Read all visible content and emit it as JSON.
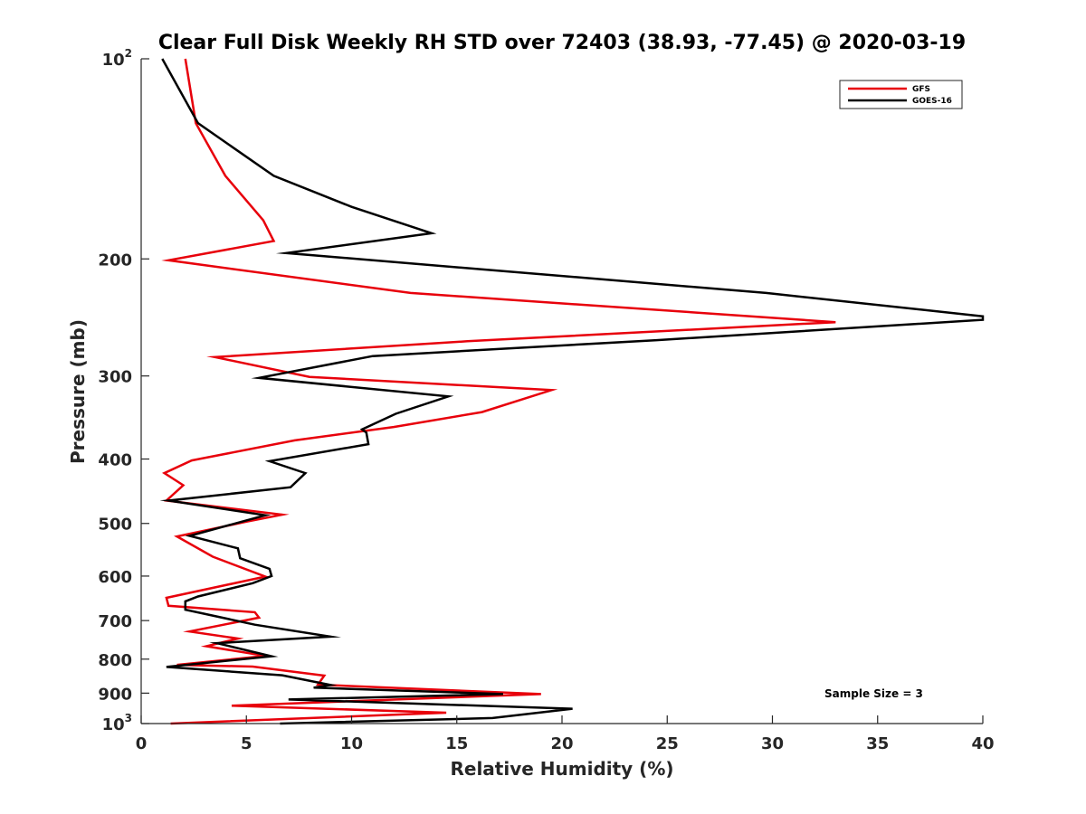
{
  "chart_data": {
    "type": "line",
    "title": "Clear Full Disk Weekly RH STD over 72403 (38.93, -77.45) @ 2020-03-19",
    "xlabel": "Relative Humidity (%)",
    "ylabel": "Pressure (mb)",
    "xlim": [
      0,
      40
    ],
    "ylim": [
      100,
      1000
    ],
    "yscale": "log",
    "y_reversed": true,
    "grid": false,
    "legend_position": "top-right",
    "x_ticks": [
      "0",
      "5",
      "10",
      "15",
      "20",
      "25",
      "30",
      "35",
      "40"
    ],
    "x_tick_values": [
      0,
      5,
      10,
      15,
      20,
      25,
      30,
      35,
      40
    ],
    "y_ticks": [
      {
        "value": 100,
        "base": "10",
        "exp": "2",
        "label": ""
      },
      {
        "value": 200,
        "label": "200"
      },
      {
        "value": 300,
        "label": "300"
      },
      {
        "value": 400,
        "label": "400"
      },
      {
        "value": 500,
        "label": "500"
      },
      {
        "value": 600,
        "label": "600"
      },
      {
        "value": 700,
        "label": "700"
      },
      {
        "value": 800,
        "label": "800"
      },
      {
        "value": 900,
        "label": "900"
      },
      {
        "value": 1000,
        "base": "10",
        "exp": "3",
        "label": ""
      }
    ],
    "annotation": "Sample Size = 3",
    "series": [
      {
        "name": "GFS",
        "color": "#e8000b",
        "points": [
          [
            2.1,
            100
          ],
          [
            2.6,
            125
          ],
          [
            4.0,
            150
          ],
          [
            5.8,
            175
          ],
          [
            6.3,
            188
          ],
          [
            1.3,
            201
          ],
          [
            12.8,
            225
          ],
          [
            33.0,
            249
          ],
          [
            15.5,
            266
          ],
          [
            3.5,
            281
          ],
          [
            8.0,
            301
          ],
          [
            19.5,
            315
          ],
          [
            16.2,
            340
          ],
          [
            12.0,
            358
          ],
          [
            7.3,
            375
          ],
          [
            2.4,
            402
          ],
          [
            1.1,
            420
          ],
          [
            2.0,
            438
          ],
          [
            1.2,
            462
          ],
          [
            6.7,
            485
          ],
          [
            5.0,
            497
          ],
          [
            1.7,
            523
          ],
          [
            3.4,
            561
          ],
          [
            5.9,
            601
          ],
          [
            1.2,
            647
          ],
          [
            1.3,
            665
          ],
          [
            5.4,
            680
          ],
          [
            5.6,
            693
          ],
          [
            2.3,
            727
          ],
          [
            4.6,
            745
          ],
          [
            3.1,
            765
          ],
          [
            5.9,
            791
          ],
          [
            1.7,
            816
          ],
          [
            5.3,
            821
          ],
          [
            8.7,
            847
          ],
          [
            8.4,
            874
          ],
          [
            19.0,
            903
          ],
          [
            4.3,
            940
          ],
          [
            14.5,
            963
          ],
          [
            1.4,
            1000
          ]
        ]
      },
      {
        "name": "GOES-16",
        "color": "#000000",
        "points": [
          [
            1.0,
            100
          ],
          [
            2.7,
            125
          ],
          [
            6.3,
            150
          ],
          [
            10.0,
            167
          ],
          [
            13.8,
            183
          ],
          [
            6.9,
            196
          ],
          [
            29.7,
            225
          ],
          [
            40.0,
            244
          ],
          [
            40.0,
            247
          ],
          [
            24.5,
            265
          ],
          [
            11.0,
            280
          ],
          [
            5.6,
            302
          ],
          [
            14.6,
            322
          ],
          [
            12.1,
            342
          ],
          [
            10.5,
            361
          ],
          [
            10.7,
            365
          ],
          [
            10.8,
            380
          ],
          [
            6.1,
            403
          ],
          [
            7.8,
            420
          ],
          [
            7.1,
            441
          ],
          [
            1.3,
            462
          ],
          [
            5.9,
            486
          ],
          [
            2.3,
            522
          ],
          [
            4.6,
            545
          ],
          [
            4.7,
            564
          ],
          [
            6.1,
            585
          ],
          [
            6.2,
            600
          ],
          [
            5.3,
            615
          ],
          [
            2.7,
            644
          ],
          [
            2.1,
            655
          ],
          [
            2.1,
            674
          ],
          [
            5.4,
            710
          ],
          [
            9.0,
            740
          ],
          [
            3.6,
            757
          ],
          [
            6.2,
            792
          ],
          [
            1.2,
            822
          ],
          [
            6.7,
            846
          ],
          [
            9.0,
            875
          ],
          [
            8.2,
            883
          ],
          [
            17.2,
            903
          ],
          [
            7.0,
            920
          ],
          [
            20.5,
            950
          ],
          [
            16.7,
            981
          ],
          [
            6.6,
            1000
          ]
        ]
      }
    ]
  }
}
